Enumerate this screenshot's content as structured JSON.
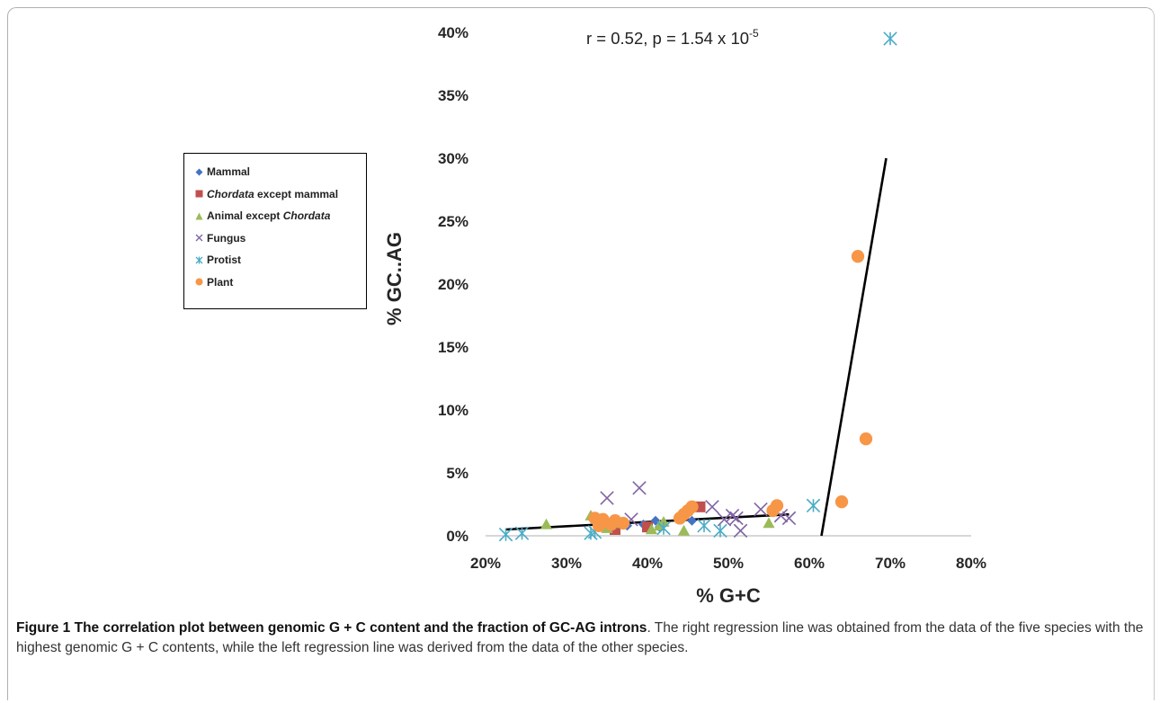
{
  "annotation": {
    "prefix": "r = 0.52, p = 1.54 x 10",
    "exponent": "-5"
  },
  "legend": [
    {
      "key": "mammal",
      "label": "Mammal",
      "italic": "",
      "rest": "",
      "marker": "diamond",
      "color": "#4472c4"
    },
    {
      "key": "chordata",
      "label": "",
      "italic": "Chordata",
      "rest": " except mammal",
      "marker": "square",
      "color": "#c0504d"
    },
    {
      "key": "animal",
      "label": "Animal except ",
      "italic": "Chordata",
      "rest": "",
      "marker": "triangle",
      "color": "#9bbb59"
    },
    {
      "key": "fungus",
      "label": "Fungus",
      "italic": "",
      "rest": "",
      "marker": "x",
      "color": "#8064a2"
    },
    {
      "key": "protist",
      "label": "Protist",
      "italic": "",
      "rest": "",
      "marker": "star",
      "color": "#4bacc6"
    },
    {
      "key": "plant",
      "label": "Plant",
      "italic": "",
      "rest": "",
      "marker": "circle",
      "color": "#f79646"
    }
  ],
  "caption": {
    "bold": "Figure 1 The correlation plot between genomic G + C content and the fraction of GC-AG introns",
    "text": ". The right regression line was obtained from the data of the five species with the highest genomic G + C contents, while the left regression line was derived from the data of the other species."
  },
  "chart_data": {
    "type": "scatter",
    "xlabel": "% G+C",
    "ylabel": "% GC..AG",
    "xlim": [
      20,
      80
    ],
    "ylim": [
      0,
      40
    ],
    "xticks": [
      "20%",
      "30%",
      "40%",
      "50%",
      "60%",
      "70%",
      "80%"
    ],
    "yticks": [
      "0%",
      "5%",
      "10%",
      "15%",
      "20%",
      "25%",
      "30%",
      "35%",
      "40%"
    ],
    "grid": false,
    "legend_position": "left",
    "series": [
      {
        "name": "Mammal",
        "marker": "diamond",
        "color": "#4472c4",
        "points": [
          [
            37.5,
            0.8
          ],
          [
            39.5,
            0.9
          ],
          [
            41,
            1.2
          ],
          [
            41.5,
            0.7
          ],
          [
            45.5,
            1.2
          ]
        ]
      },
      {
        "name": "Chordata except mammal",
        "marker": "square",
        "color": "#c0504d",
        "points": [
          [
            36,
            0.5
          ],
          [
            40,
            0.7
          ],
          [
            46.5,
            2.3
          ]
        ]
      },
      {
        "name": "Animal except Chordata",
        "marker": "triangle",
        "color": "#9bbb59",
        "points": [
          [
            27.5,
            0.9
          ],
          [
            33,
            1.6
          ],
          [
            35,
            0.6
          ],
          [
            36.5,
            1.0
          ],
          [
            40.5,
            0.5
          ],
          [
            41.5,
            0.8
          ],
          [
            42,
            1.1
          ],
          [
            44.5,
            0.4
          ],
          [
            55,
            1.0
          ]
        ]
      },
      {
        "name": "Fungus",
        "marker": "x",
        "color": "#8064a2",
        "points": [
          [
            35,
            3.0
          ],
          [
            39,
            3.8
          ],
          [
            38,
            1.3
          ],
          [
            48,
            2.3
          ],
          [
            49.5,
            1.3
          ],
          [
            50.5,
            1.6
          ],
          [
            51,
            1.4
          ],
          [
            51.5,
            0.4
          ],
          [
            54,
            2.1
          ],
          [
            56.5,
            1.6
          ],
          [
            57.5,
            1.4
          ]
        ]
      },
      {
        "name": "Protist",
        "marker": "star",
        "color": "#4bacc6",
        "points": [
          [
            22.5,
            0.1
          ],
          [
            24.5,
            0.2
          ],
          [
            33,
            0.2
          ],
          [
            33.5,
            0.3
          ],
          [
            42,
            0.6
          ],
          [
            47,
            0.8
          ],
          [
            49,
            0.4
          ],
          [
            60.5,
            2.4
          ],
          [
            70,
            39.5
          ]
        ]
      },
      {
        "name": "Plant",
        "marker": "circle",
        "color": "#f79646",
        "points": [
          [
            33.5,
            1.4
          ],
          [
            34,
            0.8
          ],
          [
            34.5,
            1.3
          ],
          [
            35.5,
            0.9
          ],
          [
            36,
            1.2
          ],
          [
            37,
            1.0
          ],
          [
            44,
            1.4
          ],
          [
            44.5,
            1.7
          ],
          [
            45,
            2.0
          ],
          [
            45.5,
            2.3
          ],
          [
            55.5,
            2.0
          ],
          [
            56,
            2.4
          ],
          [
            64,
            2.7
          ],
          [
            66,
            22.2
          ],
          [
            67,
            7.7
          ]
        ]
      }
    ],
    "regression_lines": [
      {
        "from": [
          22.5,
          0.5
        ],
        "to": [
          57.5,
          1.7
        ]
      },
      {
        "from": [
          61.5,
          0.0
        ],
        "to": [
          69.5,
          30.0
        ]
      }
    ]
  }
}
